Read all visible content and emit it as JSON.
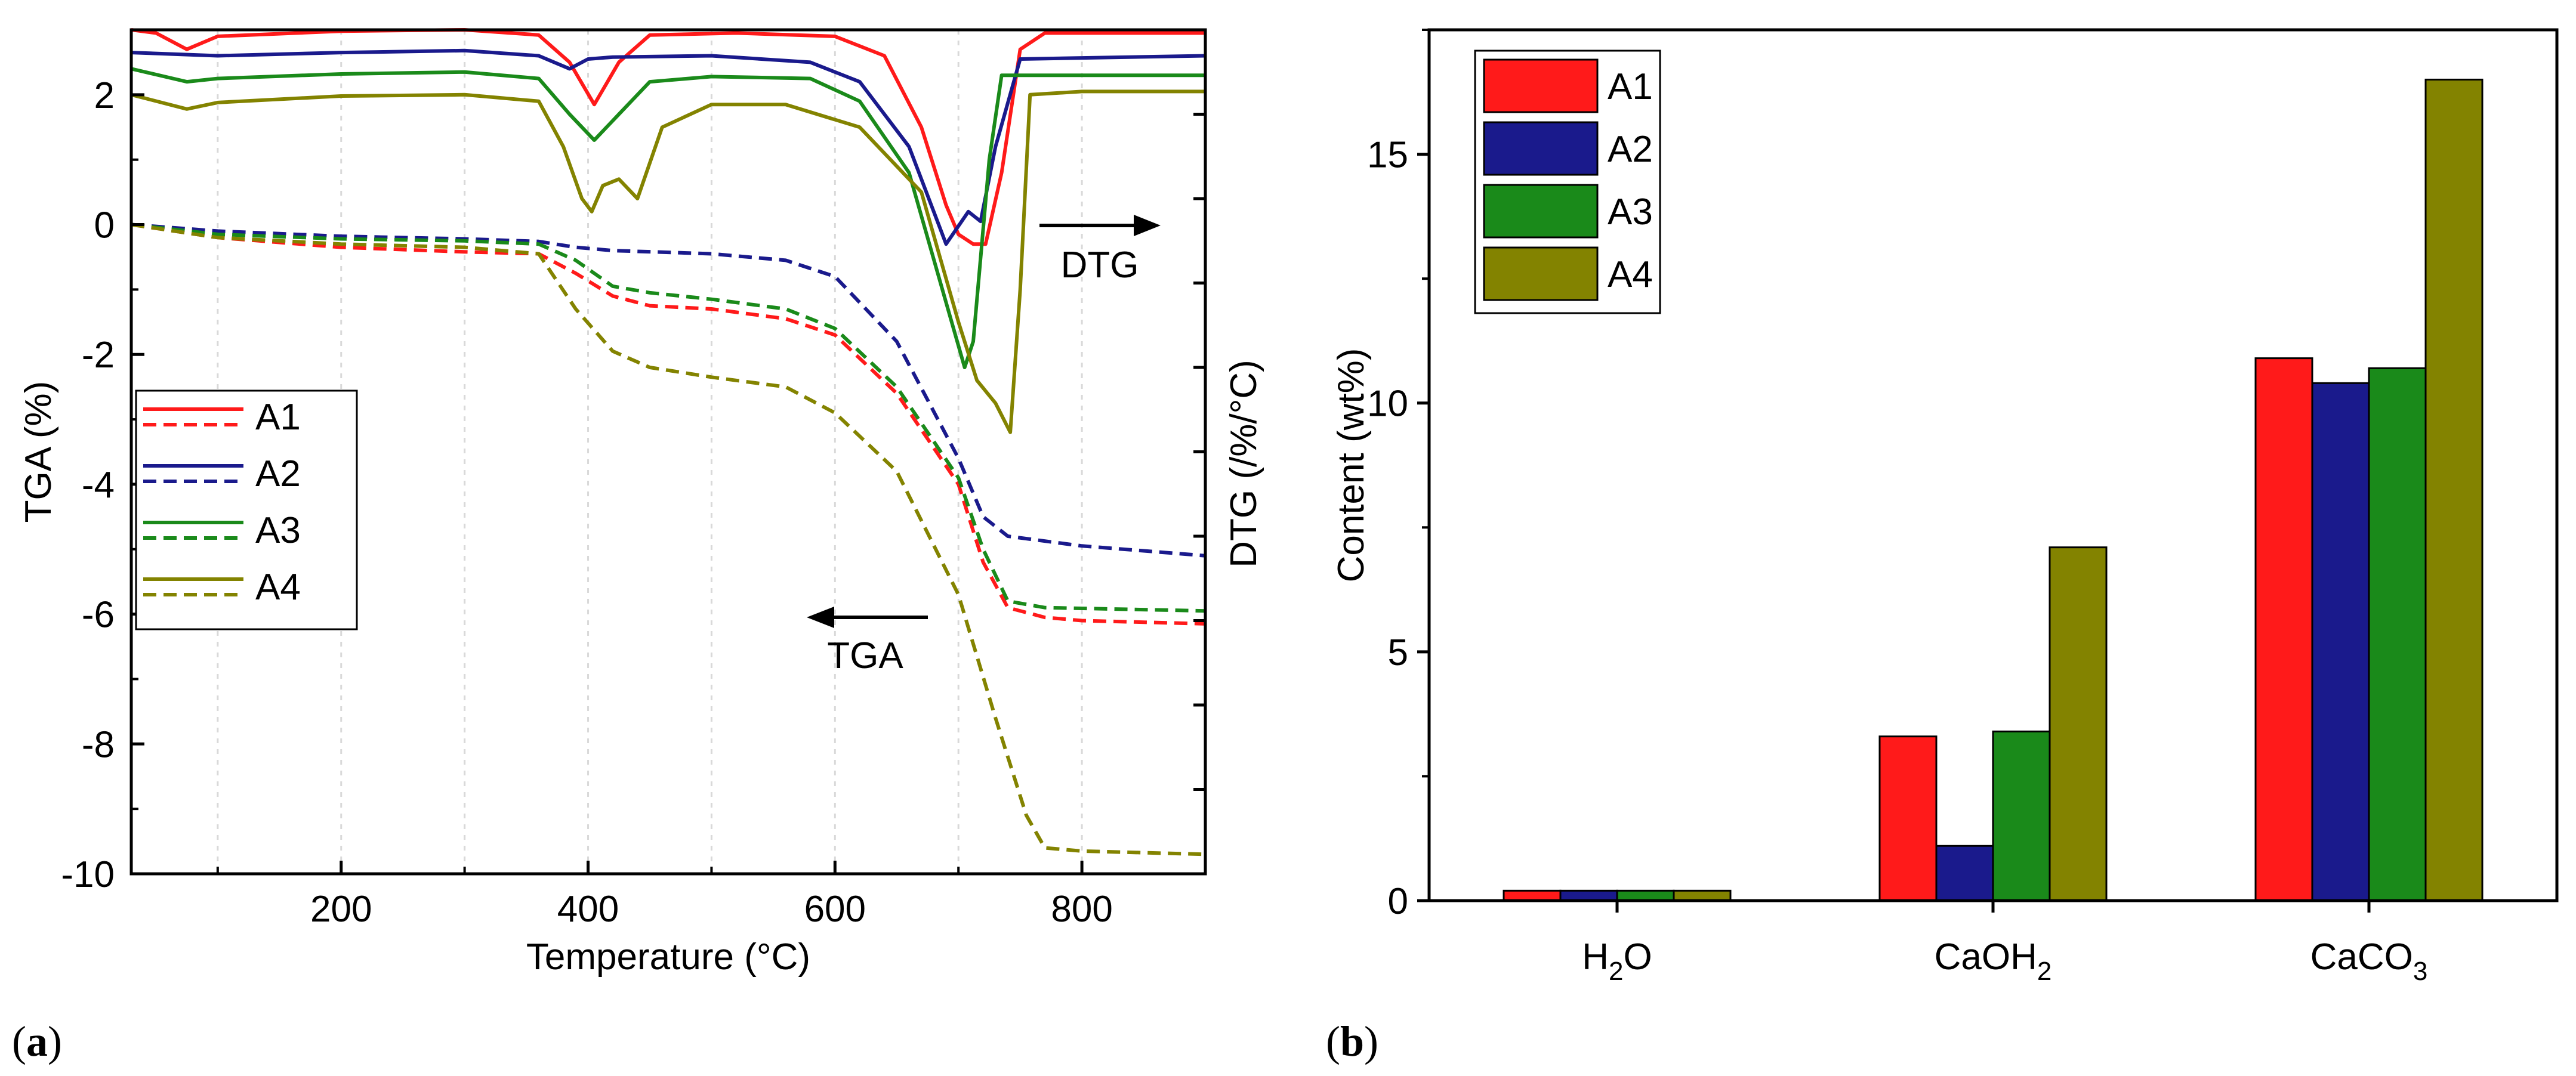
{
  "panel_a_label": "a",
  "panel_b_label": "b",
  "colors": {
    "A1": "#ff1a1a",
    "A2": "#1a1a8c",
    "A3": "#1a8a1a",
    "A4": "#838300"
  },
  "chart_data": [
    {
      "type": "line",
      "xlabel": "Temperature (°C)",
      "ylabel": "TGA (%)",
      "y2label": "DTG (/%/°C)",
      "xlim": [
        30,
        900
      ],
      "ylim": [
        -10,
        3
      ],
      "x_ticks": [
        200,
        400,
        600,
        800
      ],
      "y_ticks": [
        2,
        0,
        -2,
        -4,
        -6,
        -8,
        -10
      ],
      "grid": true,
      "legend": "middle-left",
      "legend_entries": [
        "A1",
        "A2",
        "A3",
        "A4"
      ],
      "annotations": {
        "dtg_arrow": "DTG",
        "tga_arrow": "TGA"
      },
      "tga_series": [
        {
          "name": "A1",
          "points": [
            [
              30,
              0
            ],
            [
              100,
              -0.2
            ],
            [
              200,
              -0.35
            ],
            [
              300,
              -0.42
            ],
            [
              360,
              -0.45
            ],
            [
              390,
              -0.75
            ],
            [
              420,
              -1.1
            ],
            [
              450,
              -1.25
            ],
            [
              500,
              -1.3
            ],
            [
              560,
              -1.45
            ],
            [
              600,
              -1.7
            ],
            [
              650,
              -2.6
            ],
            [
              700,
              -4.0
            ],
            [
              720,
              -5.2
            ],
            [
              740,
              -5.9
            ],
            [
              770,
              -6.05
            ],
            [
              800,
              -6.1
            ],
            [
              900,
              -6.15
            ]
          ]
        },
        {
          "name": "A2",
          "points": [
            [
              30,
              0
            ],
            [
              100,
              -0.1
            ],
            [
              200,
              -0.18
            ],
            [
              300,
              -0.22
            ],
            [
              360,
              -0.26
            ],
            [
              390,
              -0.35
            ],
            [
              420,
              -0.4
            ],
            [
              500,
              -0.45
            ],
            [
              560,
              -0.55
            ],
            [
              600,
              -0.8
            ],
            [
              650,
              -1.8
            ],
            [
              700,
              -3.6
            ],
            [
              720,
              -4.5
            ],
            [
              740,
              -4.8
            ],
            [
              800,
              -4.95
            ],
            [
              900,
              -5.1
            ]
          ]
        },
        {
          "name": "A3",
          "points": [
            [
              30,
              0
            ],
            [
              100,
              -0.15
            ],
            [
              200,
              -0.22
            ],
            [
              300,
              -0.25
            ],
            [
              360,
              -0.3
            ],
            [
              390,
              -0.55
            ],
            [
              420,
              -0.95
            ],
            [
              450,
              -1.05
            ],
            [
              500,
              -1.15
            ],
            [
              560,
              -1.3
            ],
            [
              600,
              -1.6
            ],
            [
              650,
              -2.5
            ],
            [
              700,
              -3.9
            ],
            [
              720,
              -5.0
            ],
            [
              740,
              -5.8
            ],
            [
              770,
              -5.9
            ],
            [
              900,
              -5.95
            ]
          ]
        },
        {
          "name": "A4",
          "points": [
            [
              30,
              0
            ],
            [
              100,
              -0.2
            ],
            [
              200,
              -0.3
            ],
            [
              300,
              -0.35
            ],
            [
              360,
              -0.45
            ],
            [
              390,
              -1.3
            ],
            [
              420,
              -1.95
            ],
            [
              450,
              -2.2
            ],
            [
              500,
              -2.35
            ],
            [
              560,
              -2.5
            ],
            [
              600,
              -2.9
            ],
            [
              650,
              -3.8
            ],
            [
              700,
              -5.7
            ],
            [
              730,
              -7.6
            ],
            [
              755,
              -9.1
            ],
            [
              770,
              -9.6
            ],
            [
              800,
              -9.65
            ],
            [
              900,
              -9.7
            ]
          ]
        }
      ],
      "dtg_series": [
        {
          "name": "A1",
          "points": [
            [
              30,
              3.0
            ],
            [
              50,
              2.95
            ],
            [
              75,
              2.7
            ],
            [
              100,
              2.9
            ],
            [
              200,
              2.98
            ],
            [
              300,
              3.0
            ],
            [
              360,
              2.92
            ],
            [
              385,
              2.5
            ],
            [
              405,
              1.85
            ],
            [
              425,
              2.5
            ],
            [
              450,
              2.92
            ],
            [
              520,
              2.95
            ],
            [
              600,
              2.9
            ],
            [
              640,
              2.6
            ],
            [
              670,
              1.5
            ],
            [
              690,
              0.3
            ],
            [
              700,
              -0.15
            ],
            [
              712,
              -0.3
            ],
            [
              722,
              -0.3
            ],
            [
              735,
              0.8
            ],
            [
              750,
              2.7
            ],
            [
              770,
              2.95
            ],
            [
              900,
              2.95
            ]
          ]
        },
        {
          "name": "A2",
          "points": [
            [
              30,
              2.65
            ],
            [
              100,
              2.6
            ],
            [
              200,
              2.65
            ],
            [
              300,
              2.68
            ],
            [
              360,
              2.6
            ],
            [
              385,
              2.4
            ],
            [
              400,
              2.55
            ],
            [
              420,
              2.58
            ],
            [
              500,
              2.6
            ],
            [
              580,
              2.5
            ],
            [
              620,
              2.2
            ],
            [
              660,
              1.2
            ],
            [
              690,
              -0.3
            ],
            [
              708,
              0.2
            ],
            [
              718,
              0.05
            ],
            [
              730,
              1.2
            ],
            [
              750,
              2.55
            ],
            [
              900,
              2.6
            ]
          ]
        },
        {
          "name": "A3",
          "points": [
            [
              30,
              2.4
            ],
            [
              75,
              2.2
            ],
            [
              100,
              2.25
            ],
            [
              200,
              2.32
            ],
            [
              300,
              2.35
            ],
            [
              360,
              2.25
            ],
            [
              385,
              1.7
            ],
            [
              405,
              1.3
            ],
            [
              425,
              1.7
            ],
            [
              450,
              2.2
            ],
            [
              500,
              2.28
            ],
            [
              580,
              2.25
            ],
            [
              620,
              1.9
            ],
            [
              660,
              0.8
            ],
            [
              690,
              -1.2
            ],
            [
              705,
              -2.2
            ],
            [
              712,
              -1.8
            ],
            [
              725,
              1.0
            ],
            [
              735,
              2.3
            ],
            [
              900,
              2.3
            ]
          ]
        },
        {
          "name": "A4",
          "points": [
            [
              30,
              2.0
            ],
            [
              75,
              1.78
            ],
            [
              100,
              1.88
            ],
            [
              200,
              1.98
            ],
            [
              300,
              2.0
            ],
            [
              360,
              1.9
            ],
            [
              380,
              1.2
            ],
            [
              395,
              0.4
            ],
            [
              403,
              0.2
            ],
            [
              412,
              0.6
            ],
            [
              425,
              0.7
            ],
            [
              440,
              0.4
            ],
            [
              460,
              1.5
            ],
            [
              500,
              1.85
            ],
            [
              560,
              1.85
            ],
            [
              620,
              1.5
            ],
            [
              670,
              0.5
            ],
            [
              700,
              -1.5
            ],
            [
              715,
              -2.4
            ],
            [
              730,
              -2.75
            ],
            [
              742,
              -3.2
            ],
            [
              750,
              -1.0
            ],
            [
              758,
              2.0
            ],
            [
              800,
              2.05
            ],
            [
              900,
              2.05
            ]
          ]
        }
      ]
    },
    {
      "type": "bar",
      "categories": [
        "H2O",
        "CaOH2",
        "CaCO3"
      ],
      "category_labels": [
        {
          "base": "H",
          "sub": "2",
          "tail": "O"
        },
        {
          "base": "CaOH",
          "sub": "2",
          "tail": ""
        },
        {
          "base": "CaCO",
          "sub": "3",
          "tail": ""
        }
      ],
      "ylabel": "Content (wt%)",
      "ylim": [
        0,
        17.5
      ],
      "y_ticks": [
        0,
        5,
        10,
        15
      ],
      "legend": "top-left",
      "series": [
        {
          "name": "A1",
          "values": [
            0.2,
            3.3,
            10.9
          ]
        },
        {
          "name": "A2",
          "values": [
            0.2,
            1.1,
            10.4
          ]
        },
        {
          "name": "A3",
          "values": [
            0.2,
            3.4,
            10.7
          ]
        },
        {
          "name": "A4",
          "values": [
            0.2,
            7.1,
            16.5
          ]
        }
      ]
    }
  ]
}
